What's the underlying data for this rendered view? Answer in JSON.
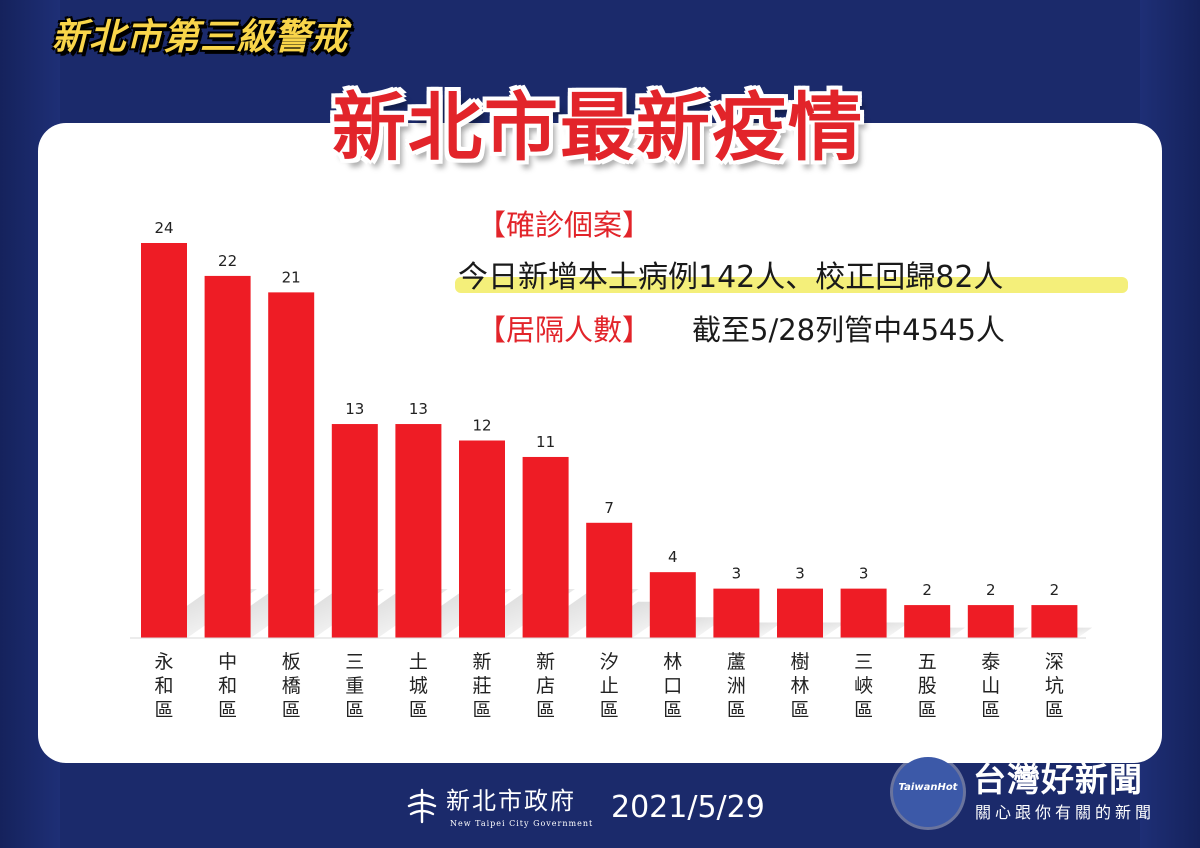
{
  "header": {
    "badge_title": "新北市第三級警戒",
    "main_title": "新北市最新疫情"
  },
  "info": {
    "confirmed_heading": "【確診個案】",
    "today_line": "今日新增本土病例142人、校正回歸82人",
    "isolation_heading": "【居隔人數】",
    "isolation_value": "截至5/28列管中4545人"
  },
  "chart_data": {
    "type": "bar",
    "title": "",
    "xlabel": "",
    "ylabel": "",
    "ylim": [
      0,
      24
    ],
    "grid": false,
    "legend": "none",
    "bar_color": "#ee1c25",
    "categories": [
      "永和區",
      "中和區",
      "板橋區",
      "三重區",
      "土城區",
      "新莊區",
      "新店區",
      "汐止區",
      "林口區",
      "蘆洲區",
      "樹林區",
      "三峽區",
      "五股區",
      "泰山區",
      "深坑區"
    ],
    "values": [
      24,
      22,
      21,
      13,
      13,
      12,
      11,
      7,
      4,
      3,
      3,
      3,
      2,
      2,
      2
    ]
  },
  "footer": {
    "gov_name": "新北市政府",
    "gov_name_en": "New Taipei City Government",
    "date": "2021/5/29"
  },
  "watermark": {
    "name": "台灣好新聞",
    "subtitle": "關心跟你有關的新聞",
    "logo_text": "TaiwanHot"
  },
  "colors": {
    "background": "#1b2a6b",
    "title_red": "#e2242a",
    "badge_yellow": "#f9d54a",
    "highlight": "#f4ef7a"
  }
}
